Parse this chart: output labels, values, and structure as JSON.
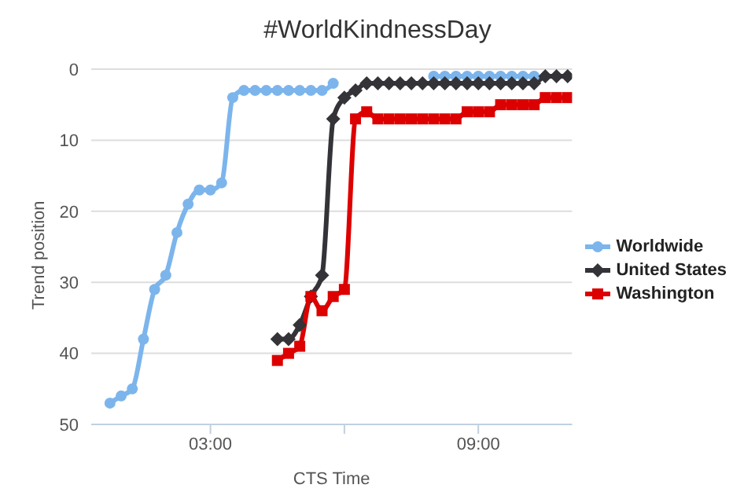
{
  "chart_data": {
    "type": "line",
    "title": "#WorldKindnessDay",
    "xlabel": "CTS Time",
    "ylabel": "Trend position",
    "xlim": [
      0.33,
      11.1
    ],
    "xticks": [
      {
        "value": 3,
        "label": "03:00"
      },
      {
        "value": 6,
        "label": null
      },
      {
        "value": 9,
        "label": "09:00"
      }
    ],
    "ylim": [
      50,
      0
    ],
    "yticks": [
      0,
      10,
      20,
      30,
      40,
      50
    ],
    "grid": "y",
    "legend": "right",
    "series": [
      {
        "name": "Worldwide",
        "color": "#7cb5ec",
        "marker": "circle",
        "x": [
          0.75,
          1,
          1.25,
          1.5,
          1.75,
          2,
          2.25,
          2.5,
          2.75,
          3,
          3.25,
          3.5,
          3.75,
          4,
          4.25,
          4.5,
          4.75,
          5,
          5.25,
          5.5,
          5.75,
          6,
          6.25,
          6.5,
          6.75,
          7,
          7.25,
          7.5,
          7.75,
          8,
          8.25,
          8.5,
          8.75,
          9,
          9.25,
          9.5,
          9.75,
          10,
          10.25
        ],
        "values": [
          47,
          46,
          45,
          38,
          31,
          29,
          23,
          19,
          17,
          17,
          16,
          4,
          3,
          3,
          3,
          3,
          3,
          3,
          3,
          3,
          2,
          null,
          null,
          null,
          null,
          null,
          null,
          null,
          null,
          1,
          1,
          1,
          1,
          1,
          1,
          1,
          1,
          1,
          1
        ]
      },
      {
        "name": "United States",
        "color": "#333338",
        "marker": "diamond",
        "x": [
          4.5,
          4.75,
          5,
          5.25,
          5.5,
          5.75,
          6,
          6.25,
          6.5,
          6.75,
          7,
          7.25,
          7.5,
          7.75,
          8,
          8.25,
          8.5,
          8.75,
          9,
          9.25,
          9.5,
          9.75,
          10,
          10.25,
          10.5,
          10.75,
          11
        ],
        "values": [
          38,
          38,
          36,
          32,
          29,
          7,
          4,
          3,
          2,
          2,
          2,
          2,
          2,
          2,
          2,
          2,
          2,
          2,
          2,
          2,
          2,
          2,
          2,
          2,
          1,
          1,
          1
        ]
      },
      {
        "name": "Washington",
        "color": "#dd0000",
        "marker": "square",
        "x": [
          4.5,
          4.75,
          5,
          5.25,
          5.5,
          5.75,
          6,
          6.25,
          6.5,
          6.75,
          7,
          7.25,
          7.5,
          7.75,
          8,
          8.25,
          8.5,
          8.75,
          9,
          9.25,
          9.5,
          9.75,
          10,
          10.25,
          10.5,
          10.75,
          11
        ],
        "values": [
          41,
          40,
          39,
          32,
          34,
          32,
          31,
          7,
          6,
          7,
          7,
          7,
          7,
          7,
          7,
          7,
          7,
          6,
          6,
          6,
          5,
          5,
          5,
          5,
          4,
          4,
          4
        ]
      }
    ]
  }
}
